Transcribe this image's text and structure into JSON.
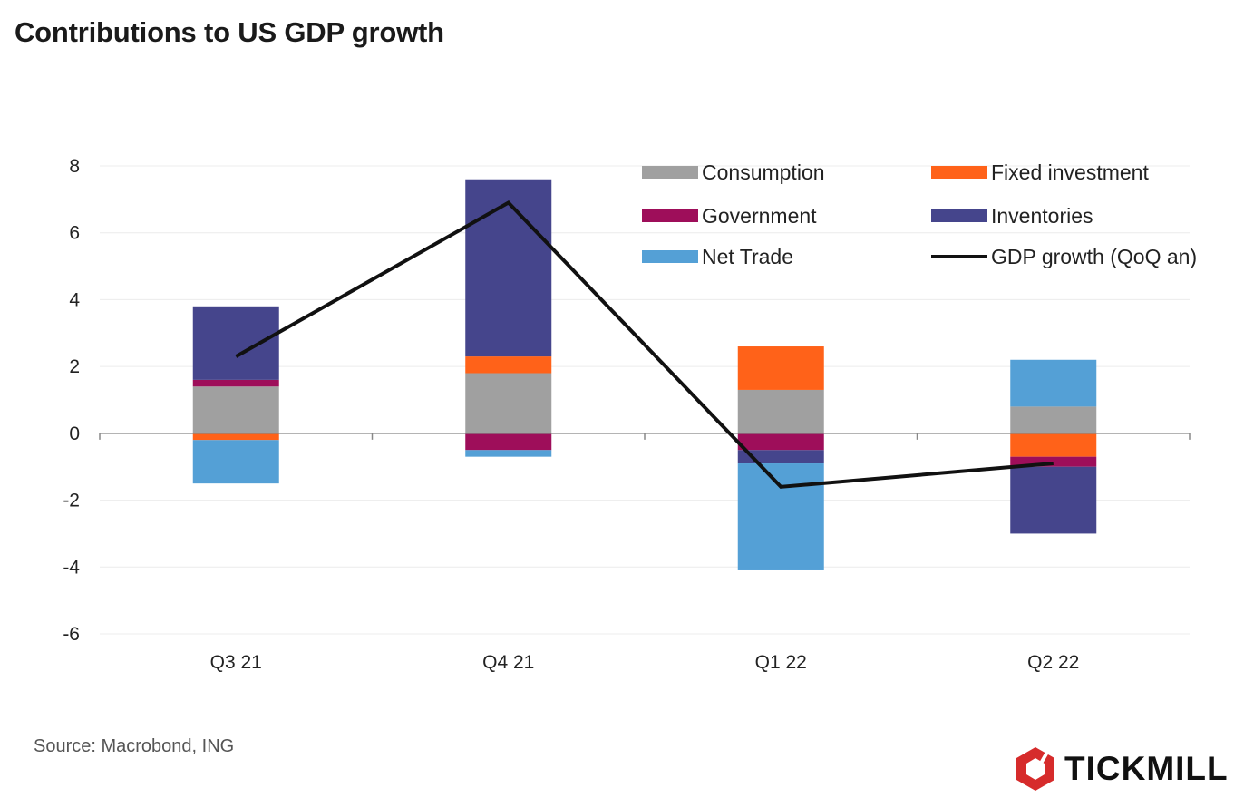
{
  "chart_data": {
    "type": "bar",
    "stacked": true,
    "title": "Contributions to US GDP growth",
    "categories": [
      "Q3 21",
      "Q4 21",
      "Q1 22",
      "Q2 22"
    ],
    "ylim": [
      -6,
      8
    ],
    "yticks": [
      8,
      6,
      4,
      2,
      0,
      -2,
      -4,
      -6
    ],
    "grid": true,
    "legend_position": "top-right",
    "series": [
      {
        "name": "Consumption",
        "color": "#a0a0a0",
        "values": [
          1.4,
          1.8,
          1.3,
          0.8
        ]
      },
      {
        "name": "Fixed investment",
        "color": "#ff6219",
        "values": [
          -0.2,
          0.5,
          1.3,
          -0.7
        ]
      },
      {
        "name": "Government",
        "color": "#9e0e5a",
        "values": [
          0.2,
          -0.5,
          -0.5,
          -0.3
        ]
      },
      {
        "name": "Inventories",
        "color": "#45458c",
        "values": [
          2.2,
          5.3,
          -0.4,
          -2.0
        ]
      },
      {
        "name": "Net Trade",
        "color": "#54a0d6",
        "values": [
          -1.3,
          -0.2,
          -3.2,
          1.4
        ]
      }
    ],
    "line_series": {
      "name": "GDP growth (QoQ an)",
      "color": "#111111",
      "values": [
        2.3,
        6.9,
        -1.6,
        -0.9
      ]
    }
  },
  "footer": {
    "source": "Source: Macrobond, ING",
    "brand_name": "TICKMILL",
    "brand_color": "#d62b2b"
  }
}
